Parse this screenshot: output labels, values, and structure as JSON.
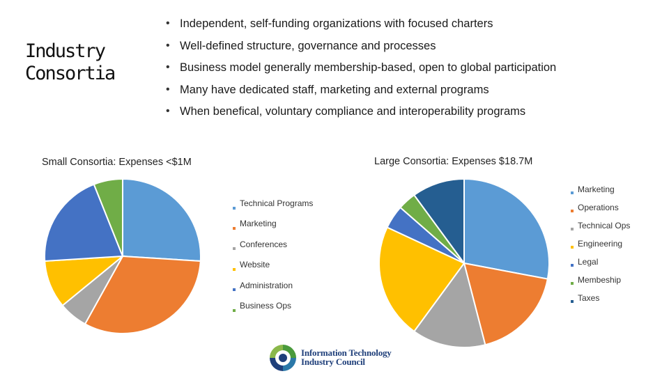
{
  "slide": {
    "heading_lines": [
      "Industry",
      "Consortia"
    ],
    "bullets": [
      "Independent, self-funding organizations with focused charters",
      "Well-defined structure, governance and processes",
      "Business model generally membership-based, open to global participation",
      "Many have dedicated staff, marketing and external programs",
      "When benefical, voluntary compliance and interoperability programs"
    ]
  },
  "logo": {
    "text_lines": [
      "Information Technology",
      "Industry Council"
    ],
    "colors": {
      "blue": "#1f3f7a",
      "green": "#4a9a3c",
      "teal": "#2b78a8"
    }
  },
  "chart_data": [
    {
      "type": "pie",
      "title": "Small Consortia: Expenses <$1M",
      "start_angle_deg": 0,
      "categories": [
        "Technical Programs",
        "Marketing",
        "Conferences",
        "Website",
        "Administration",
        "Business Ops"
      ],
      "values": [
        26,
        32,
        6,
        10,
        20,
        6
      ],
      "colors": [
        "#5b9bd5",
        "#ed7d31",
        "#a5a5a5",
        "#ffc000",
        "#4472c4",
        "#70ad47"
      ],
      "legend": "right"
    },
    {
      "type": "pie",
      "title": "Large Consortia: Expenses $18.7M",
      "start_angle_deg": 0,
      "categories": [
        "Marketing",
        "Operations",
        "Technical Ops",
        "Engineering",
        "Legal",
        "Membeship",
        "Taxes"
      ],
      "values": [
        28,
        18,
        14,
        22,
        4.5,
        3.5,
        10
      ],
      "colors": [
        "#5b9bd5",
        "#ed7d31",
        "#a5a5a5",
        "#ffc000",
        "#4472c4",
        "#70ad47",
        "#255e91"
      ],
      "legend": "right"
    }
  ]
}
